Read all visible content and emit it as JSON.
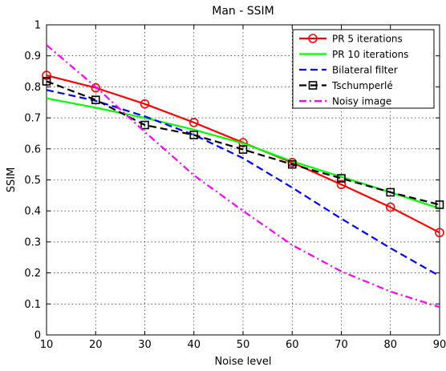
{
  "chart_data": {
    "type": "line",
    "title": "Man - SSIM",
    "xlabel": "Noise level",
    "ylabel": "SSIM",
    "xlim": [
      10,
      90
    ],
    "ylim": [
      0,
      1
    ],
    "xticks": [
      10,
      20,
      30,
      40,
      50,
      60,
      70,
      80,
      90
    ],
    "yticks": [
      0,
      0.1,
      0.2,
      0.3,
      0.4,
      0.5,
      0.6,
      0.7,
      0.8,
      0.9,
      1
    ],
    "xtick_labels": [
      "10",
      "20",
      "30",
      "40",
      "50",
      "60",
      "70",
      "80",
      "90"
    ],
    "ytick_labels": [
      "0",
      "0.1",
      "0.2",
      "0.3",
      "0.4",
      "0.5",
      "0.6",
      "0.7",
      "0.8",
      "0.9",
      "1"
    ],
    "grid": true,
    "legend_position": "top-right",
    "x": [
      10,
      20,
      30,
      40,
      50,
      60,
      70,
      80,
      90
    ],
    "series": [
      {
        "name": "PR 5 iterations",
        "color": "#ff0000",
        "line_style": "solid",
        "marker": "circle",
        "values": [
          0.837,
          0.797,
          0.745,
          0.685,
          0.62,
          0.556,
          0.485,
          0.412,
          0.33
        ]
      },
      {
        "name": "PR 10 iterations",
        "color": "#00ff00",
        "line_style": "solid",
        "marker": "none",
        "values": [
          0.763,
          0.733,
          0.7,
          0.662,
          0.618,
          0.56,
          0.51,
          0.46,
          0.408
        ]
      },
      {
        "name": "Bilateral filter",
        "color": "#0000ff",
        "line_style": "dashed",
        "marker": "none",
        "values": [
          0.79,
          0.755,
          0.705,
          0.645,
          0.57,
          0.475,
          0.375,
          0.28,
          0.19
        ]
      },
      {
        "name": "Tschumperlé",
        "color": "#000000",
        "line_style": "dashed",
        "marker": "square",
        "values": [
          0.818,
          0.758,
          0.677,
          0.645,
          0.598,
          0.55,
          0.505,
          0.46,
          0.42
        ]
      },
      {
        "name": "Noisy image",
        "color": "#ff00ff",
        "line_style": "dashdot",
        "marker": "none",
        "values": [
          0.935,
          0.8,
          0.655,
          0.515,
          0.4,
          0.29,
          0.205,
          0.14,
          0.09
        ]
      }
    ]
  }
}
